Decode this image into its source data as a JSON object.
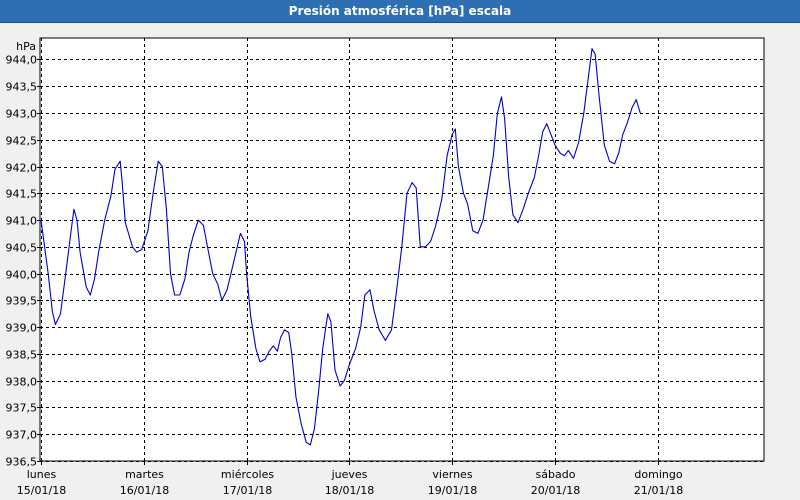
{
  "window": {
    "title": "Presión atmosférica [hPa] escala"
  },
  "chart_data": {
    "type": "line",
    "title": "Presión atmosférica [hPa] escala",
    "ylabel": "hPa",
    "ylim": [
      936.5,
      944.5
    ],
    "yticks": [
      "944,0",
      "943,5",
      "943,0",
      "942,5",
      "942,0",
      "941,5",
      "941,0",
      "940,5",
      "940,0",
      "939,5",
      "939,0",
      "938,5",
      "938,0",
      "937,5",
      "937,0",
      "936,5"
    ],
    "ytick_values": [
      944.0,
      943.5,
      943.0,
      942.5,
      942.0,
      941.5,
      941.0,
      940.5,
      940.0,
      939.5,
      939.0,
      938.5,
      938.0,
      937.5,
      937.0,
      936.5
    ],
    "xlim": [
      0,
      7.1
    ],
    "xticks": [
      {
        "day": "lunes",
        "date": "15/01/18",
        "x": 0
      },
      {
        "day": "martes",
        "date": "16/01/18",
        "x": 1
      },
      {
        "day": "miércoles",
        "date": "17/01/18",
        "x": 2
      },
      {
        "day": "jueves",
        "date": "18/01/18",
        "x": 3
      },
      {
        "day": "viernes",
        "date": "19/01/18",
        "x": 4
      },
      {
        "day": "sábado",
        "date": "20/01/18",
        "x": 5
      },
      {
        "day": "domingo",
        "date": "21/01/18",
        "x": 6
      }
    ],
    "grid": true,
    "series": [
      {
        "color": "#0000cc",
        "points": [
          [
            0.0,
            941.0
          ],
          [
            0.07,
            940.0
          ],
          [
            0.11,
            939.3
          ],
          [
            0.14,
            939.05
          ],
          [
            0.19,
            939.25
          ],
          [
            0.24,
            940.0
          ],
          [
            0.3,
            940.9
          ],
          [
            0.32,
            941.2
          ],
          [
            0.35,
            941.0
          ],
          [
            0.38,
            940.4
          ],
          [
            0.44,
            939.75
          ],
          [
            0.48,
            939.6
          ],
          [
            0.52,
            939.9
          ],
          [
            0.56,
            940.4
          ],
          [
            0.62,
            941.0
          ],
          [
            0.68,
            941.45
          ],
          [
            0.72,
            941.95
          ],
          [
            0.77,
            942.1
          ],
          [
            0.79,
            941.7
          ],
          [
            0.82,
            940.95
          ],
          [
            0.89,
            940.5
          ],
          [
            0.93,
            940.4
          ],
          [
            0.98,
            940.45
          ],
          [
            1.04,
            940.8
          ],
          [
            1.09,
            941.5
          ],
          [
            1.14,
            942.1
          ],
          [
            1.18,
            942.0
          ],
          [
            1.22,
            941.2
          ],
          [
            1.26,
            940.0
          ],
          [
            1.3,
            939.6
          ],
          [
            1.35,
            939.6
          ],
          [
            1.4,
            939.9
          ],
          [
            1.44,
            940.4
          ],
          [
            1.48,
            940.7
          ],
          [
            1.53,
            941.0
          ],
          [
            1.58,
            940.9
          ],
          [
            1.62,
            940.5
          ],
          [
            1.67,
            940.0
          ],
          [
            1.72,
            939.8
          ],
          [
            1.76,
            939.5
          ],
          [
            1.81,
            939.7
          ],
          [
            1.86,
            940.1
          ],
          [
            1.91,
            940.5
          ],
          [
            1.94,
            940.75
          ],
          [
            1.98,
            940.6
          ],
          [
            2.0,
            940.0
          ],
          [
            2.04,
            939.2
          ],
          [
            2.09,
            938.6
          ],
          [
            2.13,
            938.35
          ],
          [
            2.18,
            938.4
          ],
          [
            2.22,
            938.55
          ],
          [
            2.26,
            938.65
          ],
          [
            2.3,
            938.55
          ],
          [
            2.33,
            938.8
          ],
          [
            2.37,
            938.95
          ],
          [
            2.41,
            938.9
          ],
          [
            2.44,
            938.5
          ],
          [
            2.48,
            937.7
          ],
          [
            2.53,
            937.2
          ],
          [
            2.58,
            936.85
          ],
          [
            2.62,
            936.8
          ],
          [
            2.66,
            937.1
          ],
          [
            2.7,
            937.8
          ],
          [
            2.74,
            938.6
          ],
          [
            2.79,
            939.25
          ],
          [
            2.82,
            939.1
          ],
          [
            2.86,
            938.2
          ],
          [
            2.91,
            937.9
          ],
          [
            2.95,
            938.0
          ],
          [
            3.0,
            938.3
          ],
          [
            3.06,
            938.6
          ],
          [
            3.11,
            939.0
          ],
          [
            3.15,
            939.6
          ],
          [
            3.2,
            939.7
          ],
          [
            3.24,
            939.3
          ],
          [
            3.29,
            938.95
          ],
          [
            3.35,
            938.75
          ],
          [
            3.41,
            938.95
          ],
          [
            3.46,
            939.7
          ],
          [
            3.51,
            940.5
          ],
          [
            3.56,
            941.5
          ],
          [
            3.61,
            941.7
          ],
          [
            3.65,
            941.6
          ],
          [
            3.69,
            940.5
          ],
          [
            3.74,
            940.5
          ],
          [
            3.79,
            940.6
          ],
          [
            3.84,
            940.9
          ],
          [
            3.9,
            941.4
          ],
          [
            3.95,
            942.2
          ],
          [
            4.0,
            942.6
          ],
          [
            4.03,
            942.7
          ],
          [
            4.06,
            942.0
          ],
          [
            4.11,
            941.5
          ],
          [
            4.15,
            941.3
          ],
          [
            4.2,
            940.8
          ],
          [
            4.25,
            940.75
          ],
          [
            4.3,
            941.0
          ],
          [
            4.35,
            941.6
          ],
          [
            4.4,
            942.2
          ],
          [
            4.44,
            943.0
          ],
          [
            4.48,
            943.3
          ],
          [
            4.51,
            942.9
          ],
          [
            4.55,
            941.8
          ],
          [
            4.59,
            941.1
          ],
          [
            4.64,
            940.95
          ],
          [
            4.69,
            941.2
          ],
          [
            4.74,
            941.5
          ],
          [
            4.8,
            941.8
          ],
          [
            4.84,
            942.2
          ],
          [
            4.88,
            942.65
          ],
          [
            4.92,
            942.8
          ],
          [
            4.96,
            942.6
          ],
          [
            5.0,
            942.4
          ],
          [
            5.05,
            942.25
          ],
          [
            5.09,
            942.2
          ],
          [
            5.13,
            942.3
          ],
          [
            5.18,
            942.15
          ],
          [
            5.23,
            942.45
          ],
          [
            5.28,
            943.0
          ],
          [
            5.32,
            943.6
          ],
          [
            5.36,
            944.2
          ],
          [
            5.39,
            944.1
          ],
          [
            5.43,
            943.3
          ],
          [
            5.48,
            942.4
          ],
          [
            5.53,
            942.1
          ],
          [
            5.58,
            942.05
          ],
          [
            5.62,
            942.25
          ],
          [
            5.66,
            942.6
          ],
          [
            5.7,
            942.8
          ],
          [
            5.75,
            943.1
          ],
          [
            5.79,
            943.25
          ],
          [
            5.83,
            943.0
          ]
        ]
      }
    ]
  }
}
